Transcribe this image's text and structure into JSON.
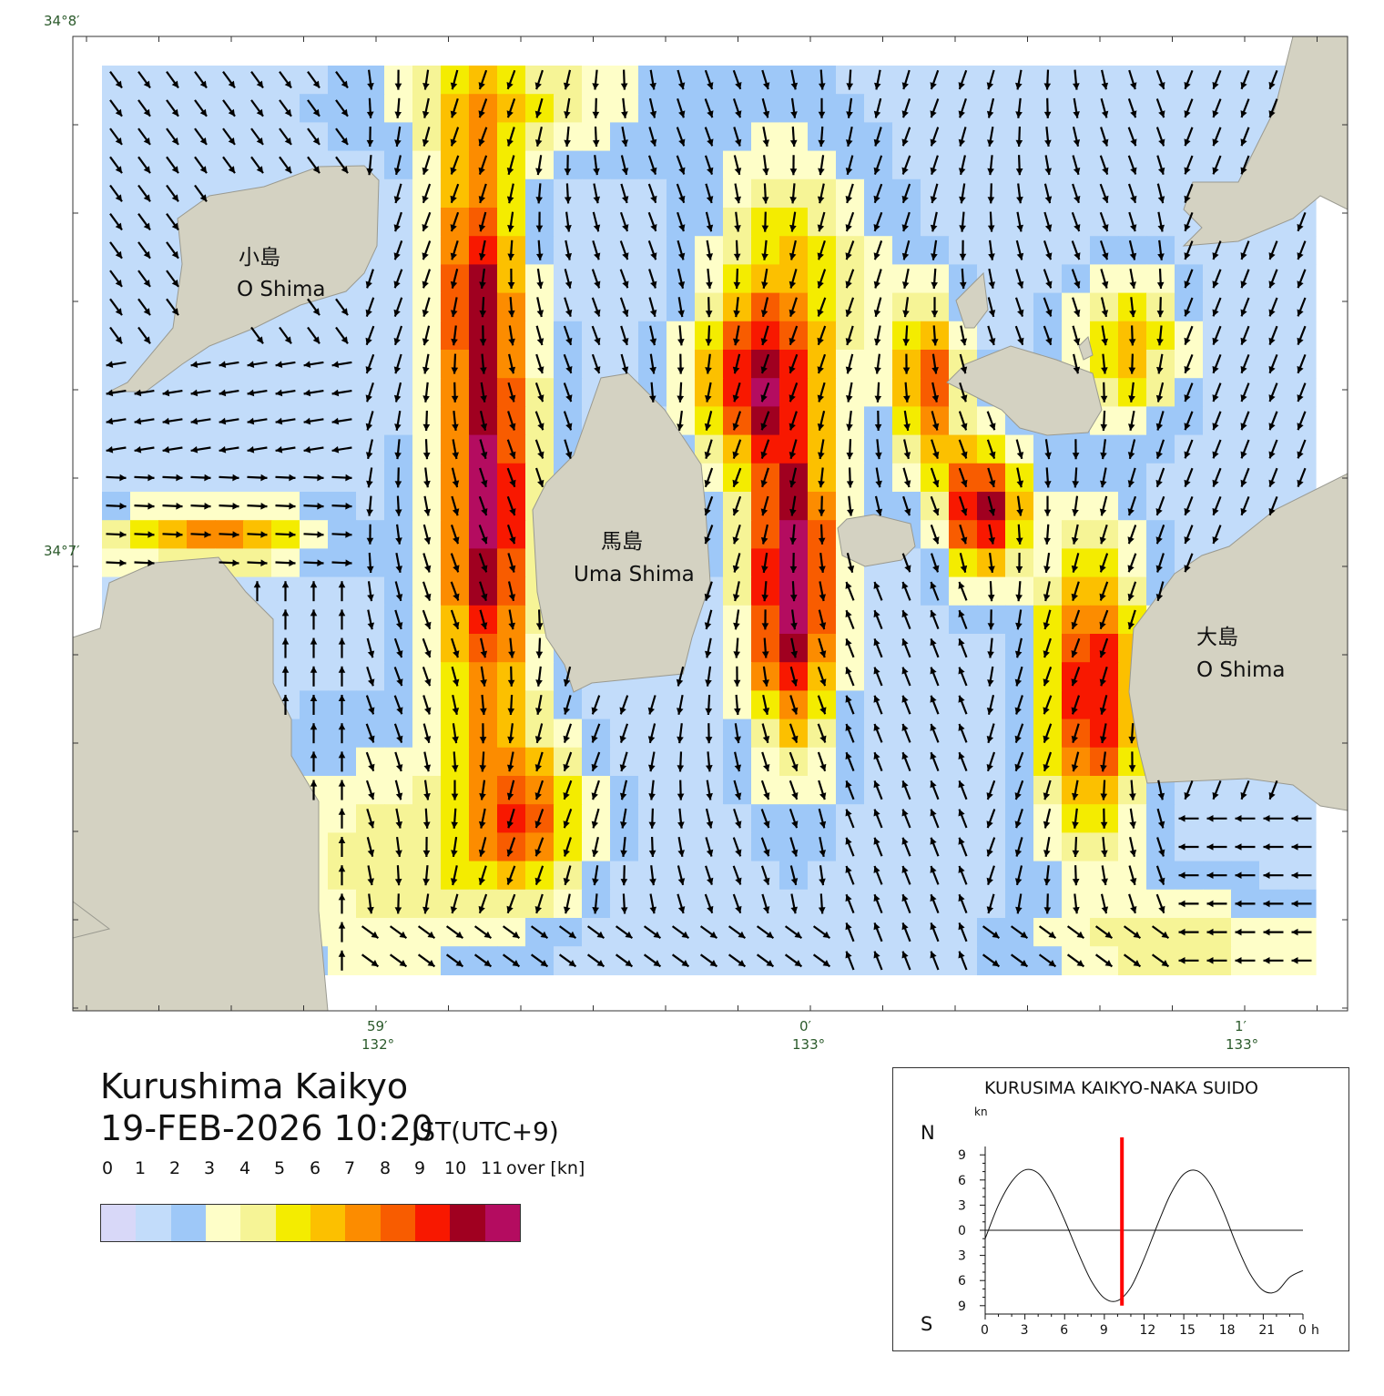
{
  "map": {
    "lat_top": "34°8′",
    "lat_mid": "34°7′",
    "lon_labels": [
      {
        "min": "59′",
        "deg": "132°"
      },
      {
        "min": "0′",
        "deg": "133°"
      },
      {
        "min": "1′",
        "deg": "133°"
      }
    ],
    "places": [
      {
        "jp": "小島",
        "en": "O Shima"
      },
      {
        "jp": "馬島",
        "en": "Uma Shima"
      },
      {
        "jp": "大島",
        "en": "O Shima"
      }
    ],
    "land_color": "#d4d2c2",
    "arrow_color": "#000000"
  },
  "title": {
    "name": "Kurushima Kaikyo",
    "datetime": "19-FEB-2026 10:20",
    "timezone": "JST(UTC+9)"
  },
  "legend": {
    "labels": [
      "0",
      "1",
      "2",
      "3",
      "4",
      "5",
      "6",
      "7",
      "8",
      "9",
      "10",
      "11",
      "over [kn]"
    ],
    "colors": [
      "#d8d8f8",
      "#c2dcfa",
      "#9ec8f8",
      "#fefec8",
      "#f6f496",
      "#f4ec00",
      "#fcc000",
      "#fc8c00",
      "#f85c00",
      "#f81800",
      "#a00020",
      "#b40c60"
    ]
  },
  "tide": {
    "title": "KURUSIMA KAIKYO-NAKA SUIDO",
    "unit": "kn",
    "north": "N",
    "south": "S",
    "y_labels": [
      "9",
      "6",
      "3",
      "0",
      "3",
      "6",
      "9"
    ],
    "x_labels": [
      "0",
      "3",
      "6",
      "9",
      "12",
      "15",
      "18",
      "21",
      "0"
    ],
    "x_unit": "h",
    "current_hour": 10.33,
    "marker_color": "#ff0000"
  },
  "chart_data": {
    "type": "line",
    "x": [
      0,
      1,
      2,
      3,
      4,
      5,
      6,
      7,
      8,
      9,
      10,
      11,
      12,
      13,
      14,
      15,
      16,
      17,
      18,
      19,
      20,
      21,
      22,
      23,
      24
    ],
    "values": [
      -1,
      3,
      5.8,
      7.2,
      6.8,
      4.6,
      1.2,
      -2.6,
      -6,
      -8.1,
      -8.4,
      -6.8,
      -3.4,
      0.6,
      4.3,
      6.7,
      7.1,
      5.5,
      2.2,
      -1.8,
      -5.2,
      -7.2,
      -7.3,
      -5.6,
      -4.8
    ],
    "xlabel": "h",
    "ylabel": "kn",
    "ylim": [
      -10,
      10
    ],
    "xlim": [
      0,
      24
    ]
  }
}
